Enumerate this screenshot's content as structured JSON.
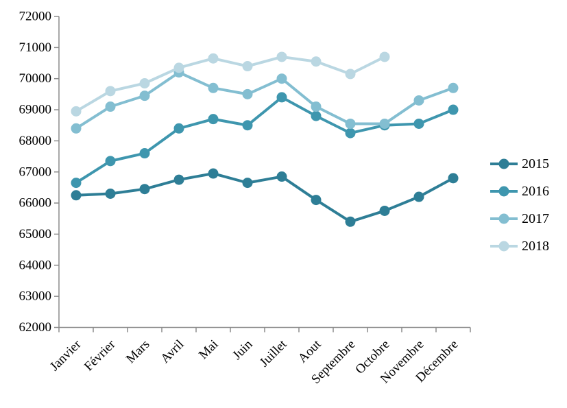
{
  "chart_data": {
    "type": "line",
    "title": "",
    "xlabel": "",
    "ylabel": "",
    "categories": [
      "Janvier",
      "Février",
      "Mars",
      "Avril",
      "Mai",
      "Juin",
      "Juillet",
      "Aout",
      "Septembre",
      "Octobre",
      "Novembre",
      "Décembre"
    ],
    "series": [
      {
        "name": "2015",
        "color": "#2e7e96",
        "values": [
          66250,
          66300,
          66450,
          66750,
          66950,
          66650,
          66850,
          66100,
          65400,
          65750,
          66200,
          66800
        ]
      },
      {
        "name": "2016",
        "color": "#3e96ae",
        "values": [
          66650,
          67350,
          67600,
          68400,
          68700,
          68500,
          69400,
          68800,
          68250,
          68500,
          68550,
          69000
        ]
      },
      {
        "name": "2017",
        "color": "#83bed1",
        "values": [
          68400,
          69100,
          69450,
          70200,
          69700,
          69500,
          70000,
          69100,
          68550,
          68550,
          69300,
          69700
        ]
      },
      {
        "name": "2018",
        "color": "#bad7e2",
        "values": [
          68950,
          69600,
          69850,
          70350,
          70650,
          70400,
          70700,
          70550,
          70150,
          70700,
          null,
          null
        ]
      }
    ],
    "ylim": [
      62000,
      72000
    ],
    "ytick_step": 1000,
    "ytick_labels": [
      "62000",
      "63000",
      "64000",
      "65000",
      "66000",
      "67000",
      "68000",
      "69000",
      "70000",
      "71000",
      "72000"
    ],
    "grid": false,
    "legend_position": "right",
    "legend_entries": [
      "2015",
      "2016",
      "2017",
      "2018"
    ],
    "axis_color": "#8c8c8c",
    "text_color": "#000000"
  }
}
